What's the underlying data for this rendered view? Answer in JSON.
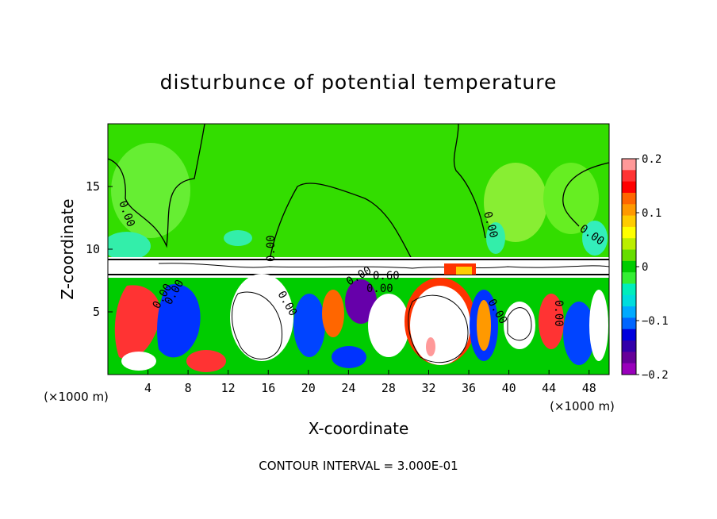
{
  "chart_data": {
    "type": "heatmap",
    "title": "disturbunce of potential temperature",
    "xlabel": "X-coordinate",
    "ylabel": "Z-coordinate",
    "x_unit": "(×1000 m)",
    "x_unit_right": "(×1000 m)",
    "xlim": [
      0,
      50
    ],
    "ylim": [
      0,
      20
    ],
    "x_ticks": [
      4,
      8,
      12,
      16,
      20,
      24,
      28,
      32,
      36,
      40,
      44,
      48
    ],
    "y_ticks": [
      5,
      10,
      15
    ],
    "colorbar": {
      "range": [
        -0.2,
        0.2
      ],
      "tick_values": [
        0.2,
        0.1,
        0,
        -0.1,
        -0.2
      ],
      "tick_labels": [
        "0.2",
        "0.1",
        "0",
        "−0.1",
        "−0.2"
      ],
      "colors": [
        "#ff9999",
        "#ff3333",
        "#ff0000",
        "#ff6600",
        "#ff9900",
        "#ffcc00",
        "#ffff00",
        "#bbee00",
        "#66dd00",
        "#00cc00",
        "#33ee33",
        "#00eebb",
        "#00dddd",
        "#00aaff",
        "#0066ff",
        "#0000dd",
        "#3300aa",
        "#660099",
        "#9900bb"
      ]
    },
    "contour_interval": "CONTOUR INTERVAL = 3.000E-01",
    "contour_labels": [
      "0.00",
      "0.00",
      "0.00",
      "0.00",
      "0.00",
      "0.60",
      "0.00",
      "0.00",
      "0.00",
      "0.00",
      "0.00",
      "0.00"
    ]
  }
}
